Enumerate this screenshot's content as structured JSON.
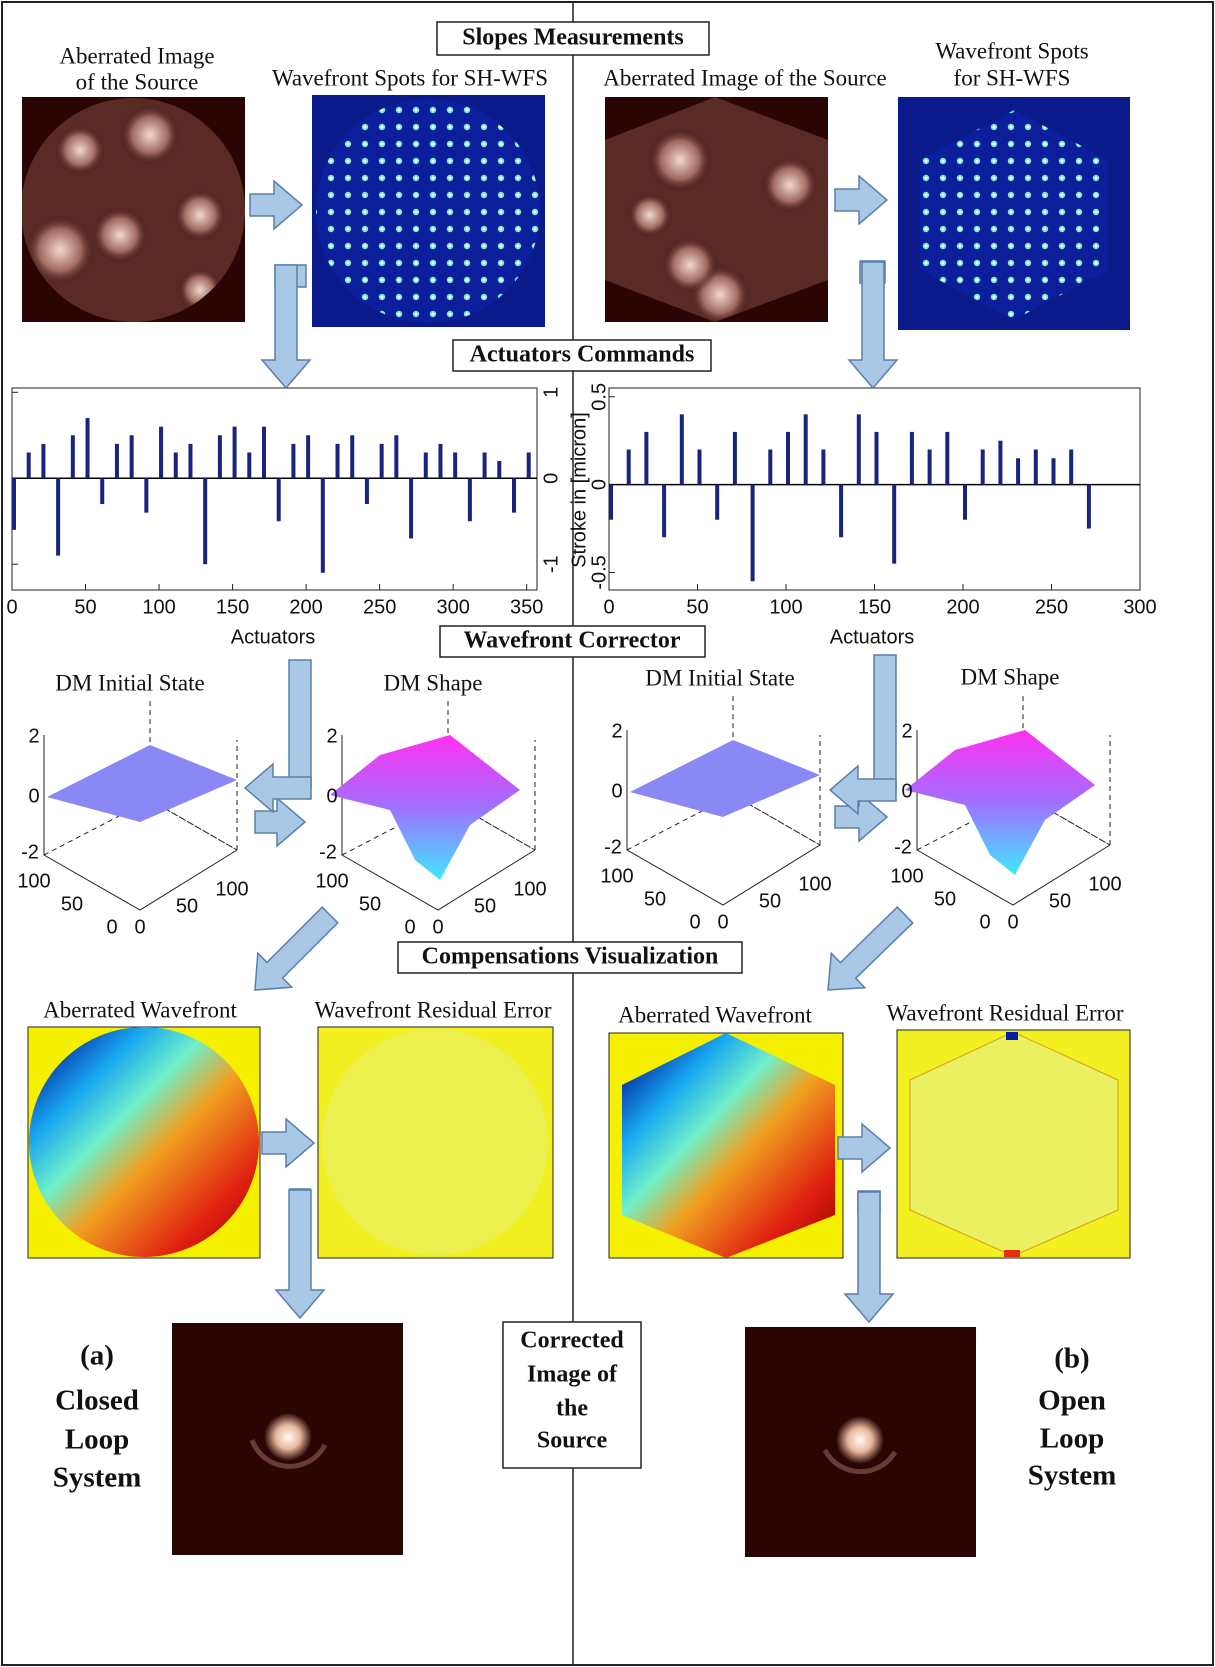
{
  "sections": [
    "Slopes Measurements",
    "Actuators Commands",
    "Wavefront Corrector",
    "Compensations Visualization"
  ],
  "left": {
    "source_title": [
      "Aberrated Image",
      "of the Source"
    ],
    "spots_title": [
      "Wavefront Spots for SH-WFS"
    ],
    "dm_initial_title": "DM Initial State",
    "dm_shape_title": "DM Shape",
    "aberrated_title": "Aberrated Wavefront",
    "residual_title": "Wavefront Residual Error",
    "tag": "(a)",
    "system": [
      "Closed",
      "Loop",
      "System"
    ]
  },
  "right": {
    "source_title": [
      "Aberrated Image of the Source"
    ],
    "spots_title": [
      "Wavefront Spots",
      "for SH-WFS"
    ],
    "dm_initial_title": "DM Initial State",
    "dm_shape_title": "DM Shape",
    "aberrated_title": "Aberrated Wavefront",
    "residual_title": "Wavefront Residual Error",
    "tag": "(b)",
    "system": [
      "Open",
      "Loop",
      "System"
    ]
  },
  "center_label": [
    "Corrected",
    "Image of",
    "the",
    "Source"
  ],
  "dm_ticks": {
    "z": [
      2,
      0,
      -2
    ],
    "y": [
      100,
      50,
      0
    ],
    "x": [
      0,
      50,
      100
    ]
  },
  "chart_data": [
    {
      "type": "bar",
      "xlabel": "Actuators",
      "color": "#1a237e",
      "x": [
        0,
        10,
        20,
        30,
        40,
        50,
        60,
        70,
        80,
        90,
        100,
        110,
        120,
        130,
        140,
        150,
        160,
        170,
        180,
        190,
        200,
        210,
        220,
        230,
        240,
        250,
        260,
        270,
        280,
        290,
        300,
        310,
        320,
        330,
        340,
        350
      ],
      "values": [
        -0.6,
        0.3,
        0.4,
        -0.9,
        0.5,
        0.7,
        -0.3,
        0.4,
        0.5,
        -0.4,
        0.6,
        0.3,
        0.4,
        -1.0,
        0.5,
        0.6,
        0.3,
        0.6,
        -0.5,
        0.4,
        0.5,
        -1.1,
        0.4,
        0.5,
        -0.3,
        0.4,
        0.5,
        -0.7,
        0.3,
        0.4,
        0.3,
        -0.5,
        0.3,
        0.2,
        -0.4,
        0.3
      ],
      "xlim": [
        0,
        357
      ],
      "ylim": [
        -1.3,
        1.05
      ],
      "xticks": [
        0,
        50,
        100,
        150,
        200,
        250,
        300,
        350
      ],
      "yticks": [
        -1,
        0,
        1
      ]
    },
    {
      "type": "bar",
      "xlabel": "Actuators",
      "ylabel": "Stroke in [micron]",
      "color": "#1a237e",
      "x": [
        0,
        10,
        20,
        30,
        40,
        50,
        60,
        70,
        80,
        90,
        100,
        110,
        120,
        130,
        140,
        150,
        160,
        170,
        180,
        190,
        200,
        210,
        220,
        230,
        240,
        250,
        260,
        270
      ],
      "values": [
        -0.2,
        0.2,
        0.3,
        -0.3,
        0.4,
        0.2,
        -0.2,
        0.3,
        -0.55,
        0.2,
        0.3,
        0.4,
        0.2,
        -0.3,
        0.4,
        0.3,
        -0.45,
        0.3,
        0.2,
        0.3,
        -0.2,
        0.2,
        0.25,
        0.15,
        0.2,
        0.15,
        0.2,
        -0.25
      ],
      "xlim": [
        0,
        300
      ],
      "ylim": [
        -0.6,
        0.55
      ],
      "xticks": [
        0,
        50,
        100,
        150,
        200,
        250,
        300
      ],
      "yticks": [
        -0.5,
        0,
        0.5
      ]
    }
  ]
}
